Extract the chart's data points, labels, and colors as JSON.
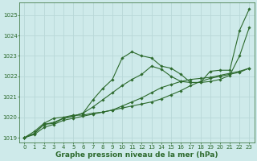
{
  "title": "Graphe pression niveau de la mer (hPa)",
  "bg_color": "#ceeaea",
  "grid_color": "#b8d8d8",
  "line_color": "#2d6a2d",
  "x_hours": [
    0,
    1,
    2,
    3,
    4,
    5,
    6,
    7,
    8,
    9,
    10,
    11,
    12,
    13,
    14,
    15,
    16,
    17,
    18,
    19,
    20,
    21,
    22,
    23
  ],
  "series1": [
    1019.0,
    1019.15,
    1019.5,
    1019.65,
    1019.85,
    1019.95,
    1020.05,
    1020.15,
    1020.25,
    1020.35,
    1020.55,
    1020.75,
    1020.95,
    1021.2,
    1021.45,
    1021.6,
    1021.75,
    1021.85,
    1021.9,
    1021.95,
    1022.05,
    1022.15,
    1022.25,
    1022.4
  ],
  "series2": [
    1019.0,
    1019.2,
    1019.65,
    1019.7,
    1019.95,
    1020.05,
    1020.2,
    1020.85,
    1021.4,
    1021.85,
    1022.9,
    1023.2,
    1023.0,
    1022.9,
    1022.5,
    1022.4,
    1022.1,
    1021.7,
    1021.7,
    1022.25,
    1022.3,
    1022.3,
    1024.25,
    1025.3
  ],
  "series3": [
    1019.0,
    1019.2,
    1019.65,
    1019.75,
    1019.95,
    1020.05,
    1020.2,
    1020.5,
    1020.85,
    1021.2,
    1021.55,
    1021.85,
    1022.1,
    1022.5,
    1022.35,
    1022.0,
    1021.75,
    1021.7,
    1021.7,
    1021.75,
    1021.85,
    1022.05,
    1023.0,
    1024.4
  ],
  "series4": [
    1019.0,
    1019.3,
    1019.7,
    1019.95,
    1020.0,
    1020.1,
    1020.1,
    1020.2,
    1020.25,
    1020.35,
    1020.45,
    1020.55,
    1020.65,
    1020.75,
    1020.9,
    1021.1,
    1021.3,
    1021.55,
    1021.75,
    1021.9,
    1022.0,
    1022.1,
    1022.2,
    1022.4
  ],
  "ylim": [
    1018.75,
    1025.6
  ],
  "yticks": [
    1019,
    1020,
    1021,
    1022,
    1023,
    1024,
    1025
  ],
  "xticks": [
    0,
    1,
    2,
    3,
    4,
    5,
    6,
    7,
    8,
    9,
    10,
    11,
    12,
    13,
    14,
    15,
    16,
    17,
    18,
    19,
    20,
    21,
    22,
    23
  ],
  "title_fontsize": 6.5,
  "tick_fontsize": 5.0
}
